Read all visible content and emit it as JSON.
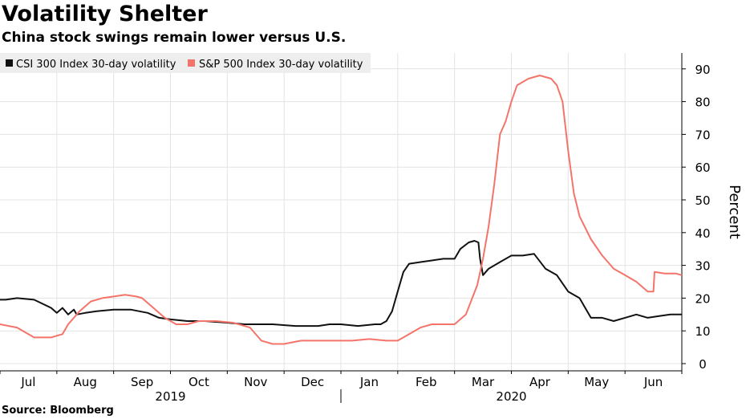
{
  "title": "Volatility Shelter",
  "subtitle": "China stock swings remain lower versus U.S.",
  "source": "Source: Bloomberg",
  "colors": {
    "csi": "#111111",
    "sp": "#f4746a",
    "grid": "#e3e3e3",
    "legend_bg": "#eeeeee"
  },
  "chart_data": {
    "type": "line",
    "title": "Volatility Shelter",
    "subtitle": "China stock swings remain lower versus U.S.",
    "ylabel": "Percent",
    "xlabel": "",
    "ylim": [
      0,
      95
    ],
    "xlim": [
      0,
      12
    ],
    "yticks": [
      0,
      10,
      20,
      30,
      40,
      50,
      60,
      70,
      80,
      90
    ],
    "month_labels": [
      "Jul",
      "Aug",
      "Sep",
      "Oct",
      "Nov",
      "Dec",
      "Jan",
      "Feb",
      "Mar",
      "Apr",
      "May",
      "Jun"
    ],
    "month_positions": [
      0.5,
      1.5,
      2.5,
      3.5,
      4.5,
      5.5,
      6.5,
      7.5,
      8.5,
      9.5,
      10.5,
      11.5
    ],
    "year_labels": [
      {
        "label": "2019",
        "center": 3.0
      },
      {
        "label": "2020",
        "center": 9.0
      }
    ],
    "grid": true,
    "legend_position": "top-left",
    "series": [
      {
        "name": "CSI 300 Index 30-day volatility",
        "color": "#111111",
        "x": [
          0,
          0.1,
          0.3,
          0.6,
          0.9,
          1.0,
          1.1,
          1.2,
          1.3,
          1.35,
          1.5,
          1.7,
          2.0,
          2.3,
          2.6,
          2.8,
          3.0,
          3.3,
          3.6,
          4.0,
          4.3,
          4.5,
          4.8,
          5.2,
          5.4,
          5.6,
          5.8,
          6.0,
          6.3,
          6.6,
          6.7,
          6.8,
          6.9,
          7.0,
          7.1,
          7.2,
          7.4,
          7.6,
          7.8,
          8.0,
          8.1,
          8.25,
          8.35,
          8.42,
          8.45,
          8.5,
          8.6,
          8.8,
          9.0,
          9.2,
          9.4,
          9.6,
          9.8,
          10.0,
          10.2,
          10.4,
          10.6,
          10.8,
          11.0,
          11.2,
          11.4,
          11.6,
          11.8,
          12.0
        ],
        "values": [
          19.5,
          19.5,
          20,
          19.5,
          17,
          15.5,
          17,
          15,
          16.5,
          15,
          15.5,
          16,
          16.5,
          16.5,
          15.5,
          14,
          13.5,
          13,
          13,
          12.5,
          12,
          12,
          12,
          11.5,
          11.5,
          11.5,
          12,
          12,
          11.5,
          12,
          12,
          13,
          16,
          22,
          28,
          30.5,
          31,
          31.5,
          32,
          32,
          35,
          37,
          37.5,
          37,
          32,
          27,
          29,
          31,
          33,
          33,
          33.5,
          29,
          27,
          22,
          20,
          14,
          14,
          13,
          14,
          15,
          14,
          14.5,
          15,
          15
        ]
      },
      {
        "name": "S&P 500 Index 30-day volatility",
        "color": "#f4746a",
        "x": [
          0,
          0.3,
          0.6,
          0.9,
          1.0,
          1.1,
          1.2,
          1.4,
          1.6,
          1.8,
          2.0,
          2.2,
          2.4,
          2.5,
          2.7,
          2.9,
          3.1,
          3.3,
          3.5,
          3.8,
          4.1,
          4.4,
          4.6,
          4.8,
          5.0,
          5.3,
          5.6,
          5.9,
          6.2,
          6.5,
          6.8,
          7.0,
          7.2,
          7.4,
          7.6,
          7.8,
          8.0,
          8.2,
          8.4,
          8.5,
          8.6,
          8.7,
          8.8,
          8.9,
          9.0,
          9.1,
          9.2,
          9.3,
          9.5,
          9.7,
          9.8,
          9.9,
          10.0,
          10.1,
          10.2,
          10.4,
          10.6,
          10.8,
          11.0,
          11.2,
          11.4,
          11.5,
          11.52,
          11.7,
          11.9,
          12.0
        ],
        "values": [
          12,
          11,
          8,
          8,
          8.5,
          9,
          12,
          16,
          19,
          20,
          20.5,
          21,
          20.5,
          20,
          17,
          14,
          12,
          12,
          13,
          13,
          12.5,
          11,
          7,
          6,
          6,
          7,
          7,
          7,
          7,
          7.5,
          7,
          7,
          9,
          11,
          12,
          12,
          12,
          15,
          24,
          32,
          42,
          55,
          70,
          74,
          80,
          85,
          86,
          87,
          88,
          87,
          85,
          80,
          65,
          52,
          45,
          38,
          33,
          29,
          27,
          25,
          22,
          22,
          28,
          27.5,
          27.5,
          27
        ]
      }
    ]
  }
}
